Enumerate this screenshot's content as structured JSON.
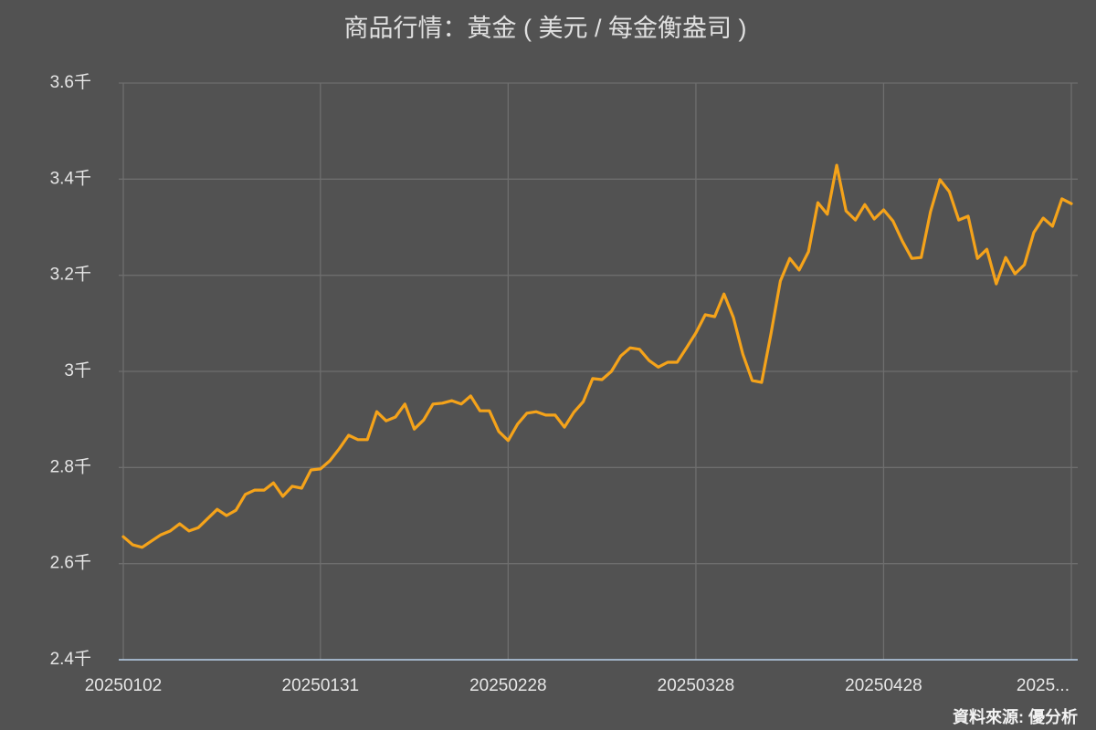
{
  "chart_data": {
    "type": "line",
    "title": "商品行情：黃金 ( 美元 / 每金衡盎司 )",
    "source": "資料來源: 優分析",
    "color": "#f5a31a",
    "grid": true,
    "ylim": [
      2400,
      3600
    ],
    "yticks": [
      {
        "value": 2400,
        "label": "2.4千"
      },
      {
        "value": 2600,
        "label": "2.6千"
      },
      {
        "value": 2800,
        "label": "2.8千"
      },
      {
        "value": 3000,
        "label": "3千"
      },
      {
        "value": 3200,
        "label": "3.2千"
      },
      {
        "value": 3400,
        "label": "3.4千"
      },
      {
        "value": 3600,
        "label": "3.6千"
      }
    ],
    "categories": [
      "20250102",
      null,
      null,
      null,
      null,
      null,
      null,
      null,
      null,
      null,
      null,
      null,
      null,
      null,
      null,
      null,
      null,
      null,
      null,
      null,
      null,
      "20250131",
      null,
      null,
      null,
      null,
      null,
      null,
      null,
      null,
      null,
      null,
      null,
      null,
      null,
      null,
      null,
      null,
      null,
      null,
      null,
      "20250228",
      null,
      null,
      null,
      null,
      null,
      null,
      null,
      null,
      null,
      null,
      null,
      null,
      null,
      null,
      null,
      null,
      null,
      null,
      null,
      "20250328",
      null,
      null,
      null,
      null,
      null,
      null,
      null,
      null,
      null,
      null,
      null,
      null,
      null,
      null,
      null,
      null,
      null,
      null,
      null,
      "20250428",
      null,
      null,
      null,
      null,
      null,
      null,
      null,
      null,
      null,
      null,
      null,
      null,
      null,
      null,
      null,
      null,
      null,
      null,
      null,
      "2025..."
    ],
    "values": [
      2656,
      2639,
      2634,
      2647,
      2660,
      2668,
      2683,
      2668,
      2675,
      2694,
      2713,
      2700,
      2711,
      2744,
      2753,
      2753,
      2768,
      2740,
      2761,
      2757,
      2795,
      2797,
      2814,
      2839,
      2867,
      2858,
      2858,
      2916,
      2897,
      2905,
      2932,
      2880,
      2899,
      2932,
      2934,
      2939,
      2932,
      2949,
      2918,
      2918,
      2875,
      2856,
      2890,
      2913,
      2916,
      2909,
      2909,
      2884,
      2915,
      2937,
      2985,
      2983,
      3000,
      3032,
      3049,
      3046,
      3023,
      3009,
      3019,
      3019,
      3049,
      3080,
      3118,
      3114,
      3161,
      3112,
      3036,
      2981,
      2977,
      3078,
      3188,
      3235,
      3211,
      3249,
      3351,
      3327,
      3429,
      3334,
      3315,
      3347,
      3317,
      3336,
      3313,
      3271,
      3235,
      3237,
      3332,
      3399,
      3374,
      3315,
      3323,
      3235,
      3254,
      3182,
      3237,
      3203,
      3222,
      3289,
      3319,
      3302,
      3359,
      3349
    ]
  }
}
